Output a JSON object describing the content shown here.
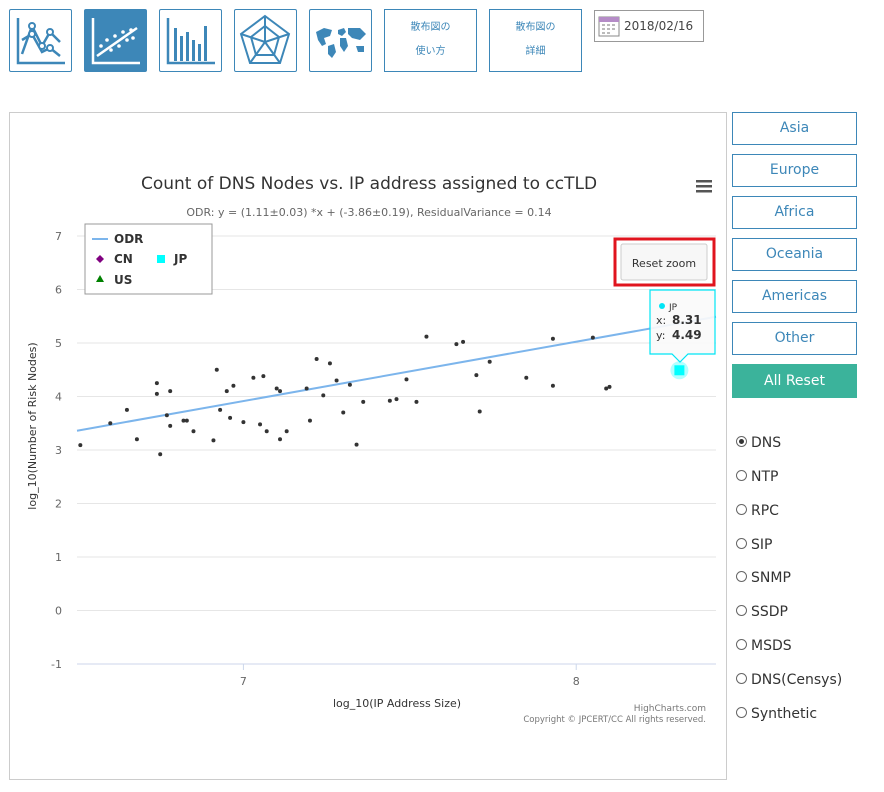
{
  "toolbar": {
    "icons": [
      "line-chart-icon",
      "scatter-chart-icon",
      "bar-chart-icon",
      "radar-chart-icon",
      "world-map-icon"
    ],
    "usage_button": [
      "散布図の",
      "使い方"
    ],
    "details_button": [
      "散布図の",
      "詳細"
    ],
    "date": "2018/02/16"
  },
  "chart": {
    "menu_icon": "hamburger-menu-icon",
    "reset_zoom": "Reset zoom",
    "credits": "HighCharts.com",
    "copyright": "Copyright © JPCERT/CC All rights reserved.",
    "tooltip": {
      "name": "JP",
      "x_label": "x:",
      "x_value": "8.31",
      "y_label": "y:",
      "y_value": "4.49"
    },
    "colors": {
      "odr": "#7cb5ec",
      "cn": "#800080",
      "jp": "#00ffff",
      "us": "#008000",
      "points": "#333333"
    }
  },
  "chart_data": {
    "type": "scatter",
    "title": "Count of DNS Nodes vs. IP address assigned to ccTLD",
    "subtitle": "ODR: y = (1.11±0.03) *x + (-3.86±0.19), ResidualVariance = 0.14",
    "xlabel": "log_10(IP Address Size)",
    "ylabel": "log_10(Number of Risk Nodes)",
    "xlim": [
      6.5,
      8.42
    ],
    "ylim": [
      -1,
      7
    ],
    "xticks": [
      "7",
      "8"
    ],
    "yticks": [
      "-1",
      "0",
      "1",
      "2",
      "3",
      "4",
      "5",
      "6",
      "7"
    ],
    "legend": [
      "ODR",
      "CN",
      "JP",
      "US"
    ],
    "legend_position": "top-left",
    "series": [
      {
        "name": "ODR",
        "type": "line",
        "x": [
          6.5,
          8.42
        ],
        "y": [
          3.36,
          5.49
        ]
      },
      {
        "name": "JP",
        "type": "scatter",
        "x": [
          8.31
        ],
        "y": [
          4.49
        ]
      },
      {
        "name": "",
        "type": "scatter",
        "points": [
          [
            6.51,
            3.09
          ],
          [
            6.6,
            3.5
          ],
          [
            6.65,
            3.75
          ],
          [
            6.68,
            3.2
          ],
          [
            6.74,
            4.25
          ],
          [
            6.74,
            4.05
          ],
          [
            6.75,
            2.92
          ],
          [
            6.77,
            3.65
          ],
          [
            6.78,
            3.45
          ],
          [
            6.78,
            4.1
          ],
          [
            6.82,
            3.55
          ],
          [
            6.83,
            3.55
          ],
          [
            6.85,
            3.35
          ],
          [
            6.91,
            3.18
          ],
          [
            6.92,
            4.5
          ],
          [
            6.93,
            3.75
          ],
          [
            6.95,
            4.1
          ],
          [
            6.96,
            3.6
          ],
          [
            6.97,
            4.2
          ],
          [
            7,
            3.52
          ],
          [
            7.03,
            4.35
          ],
          [
            7.05,
            3.48
          ],
          [
            7.06,
            4.38
          ],
          [
            7.07,
            3.35
          ],
          [
            7.1,
            4.15
          ],
          [
            7.11,
            3.2
          ],
          [
            7.11,
            4.1
          ],
          [
            7.13,
            3.35
          ],
          [
            7.2,
            3.55
          ],
          [
            7.19,
            4.15
          ],
          [
            7.22,
            4.7
          ],
          [
            7.24,
            4.02
          ],
          [
            7.26,
            4.62
          ],
          [
            7.28,
            4.3
          ],
          [
            7.3,
            3.7
          ],
          [
            7.32,
            4.22
          ],
          [
            7.34,
            3.1
          ],
          [
            7.36,
            3.9
          ],
          [
            7.44,
            3.92
          ],
          [
            7.46,
            3.95
          ],
          [
            7.49,
            4.32
          ],
          [
            7.52,
            3.9
          ],
          [
            7.55,
            5.12
          ],
          [
            7.64,
            4.98
          ],
          [
            7.66,
            5.02
          ],
          [
            7.7,
            4.4
          ],
          [
            7.71,
            3.72
          ],
          [
            7.74,
            4.65
          ],
          [
            7.85,
            4.35
          ],
          [
            7.93,
            5.08
          ],
          [
            7.93,
            4.2
          ],
          [
            8.05,
            5.1
          ],
          [
            8.09,
            4.15
          ],
          [
            8.1,
            4.18
          ]
        ]
      }
    ]
  },
  "regions": [
    "Asia",
    "Europe",
    "Africa",
    "Oceania",
    "Americas",
    "Other"
  ],
  "reset_all": "All Reset",
  "protocols": [
    "DNS",
    "NTP",
    "RPC",
    "SIP",
    "SNMP",
    "SSDP",
    "MSDS",
    "DNS(Censys)",
    "Synthetic"
  ],
  "selected_protocol": "DNS"
}
